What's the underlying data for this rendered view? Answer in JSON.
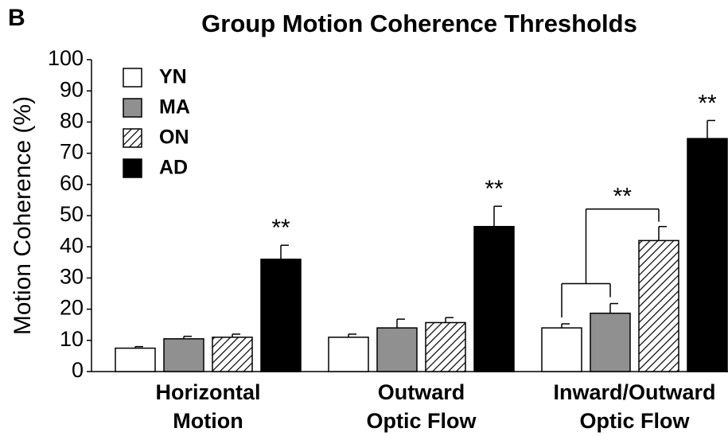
{
  "chart_data": {
    "type": "bar",
    "panel_label": "B",
    "title": "Group Motion Coherence Thresholds",
    "y_label": "Motion Coherence (%)",
    "categories": [
      [
        "Horizontal",
        "Motion"
      ],
      [
        "Outward",
        "Optic Flow"
      ],
      [
        "Inward/Outward",
        "Optic Flow"
      ]
    ],
    "series": [
      {
        "name": "YN",
        "color": "#ffffff",
        "values": [
          7.5,
          11,
          14
        ],
        "errors": [
          0.5,
          1,
          1.3
        ]
      },
      {
        "name": "MA",
        "color": "#909090",
        "values": [
          10.5,
          14,
          18.7
        ],
        "errors": [
          0.8,
          2.8,
          3.1
        ]
      },
      {
        "name": "ON",
        "color": "hatch",
        "values": [
          11,
          15.7,
          42
        ],
        "errors": [
          1,
          1.6,
          4.5
        ]
      },
      {
        "name": "AD",
        "color": "#000000",
        "values": [
          36,
          46.5,
          74.7
        ],
        "errors": [
          4.5,
          6.5,
          5.8
        ]
      }
    ],
    "annotations": [
      {
        "text": "**",
        "category": 0,
        "series": 3
      },
      {
        "text": "**",
        "category": 1,
        "series": 3
      },
      {
        "text": "**",
        "category": 2,
        "series": 3
      },
      {
        "text": "**",
        "category": 2,
        "bracket": [
          [
            0,
            1
          ],
          [
            2
          ]
        ]
      }
    ],
    "ylim": [
      0,
      100
    ],
    "yticks": [
      0,
      10,
      20,
      30,
      40,
      50,
      60,
      70,
      80,
      90,
      100
    ],
    "legend": "upper left",
    "grid": false
  }
}
